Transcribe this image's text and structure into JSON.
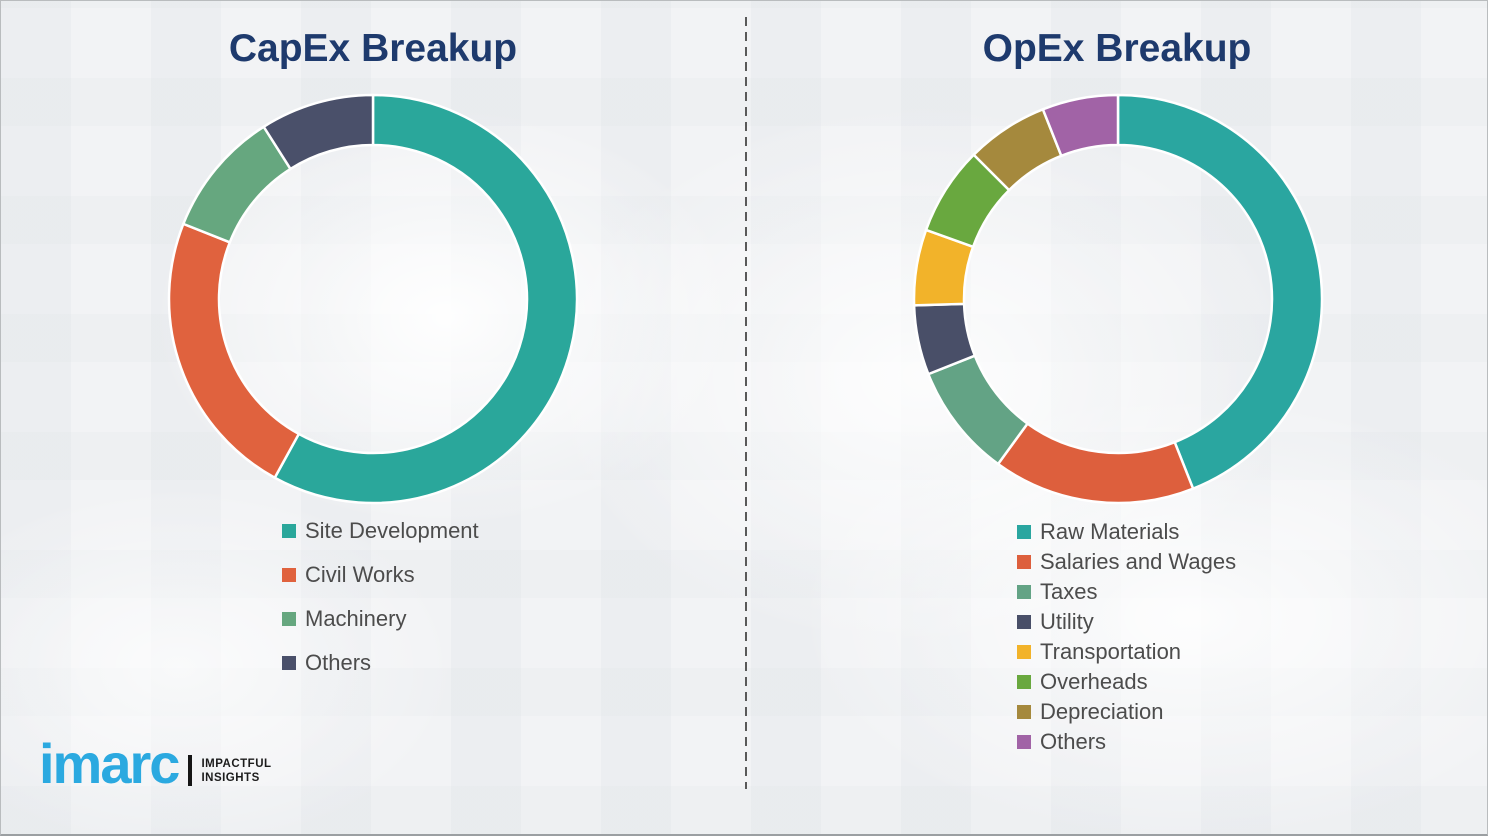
{
  "page": {
    "background_color": "#f2f3f5",
    "border_color": "#b9bcbe",
    "divider_color": "#595959",
    "title_color": "#1e3a6d",
    "legend_text_color": "#4c4c4c"
  },
  "charts": [
    {
      "title": "CapEx Breakup"
    },
    {
      "title": "OpEx Breakup"
    }
  ],
  "chart_data": [
    {
      "type": "pie",
      "subtype": "donut",
      "title": "CapEx Breakup",
      "labels": [
        "Site Development",
        "Civil Works",
        "Machinery",
        "Others"
      ],
      "values": [
        58,
        23,
        10,
        9
      ],
      "value_unit": "percent_share_estimated_from_arc_angles",
      "colors": [
        "#2aa79b",
        "#e0623e",
        "#66a77f",
        "#4a506a"
      ],
      "start_angle_deg": 0,
      "direction": "clockwise",
      "donut_hole_ratio": 0.755,
      "slice_gap_color": "#ffffff",
      "legend_position": "below-left",
      "data_labels_shown": false
    },
    {
      "type": "pie",
      "subtype": "donut",
      "title": "OpEx Breakup",
      "labels": [
        "Raw Materials",
        "Salaries and Wages",
        "Taxes",
        "Utility",
        "Transportation",
        "Overheads",
        "Depreciation",
        "Others"
      ],
      "values": [
        44,
        16,
        9,
        5.5,
        6,
        7,
        6.5,
        6
      ],
      "value_unit": "percent_share_estimated_from_arc_angles",
      "colors": [
        "#2aa6a0",
        "#dd5f3d",
        "#63a385",
        "#494f68",
        "#f2b32a",
        "#69a83f",
        "#a5893d",
        "#a163a6"
      ],
      "start_angle_deg": 0,
      "direction": "clockwise",
      "donut_hole_ratio": 0.755,
      "slice_gap_color": "#ffffff",
      "legend_position": "below-left",
      "data_labels_shown": false
    }
  ],
  "logo": {
    "brand": "imarc",
    "brand_color": "#2ba9e0",
    "tagline_line1": "IMPACTFUL",
    "tagline_line2": "INSIGHTS"
  }
}
